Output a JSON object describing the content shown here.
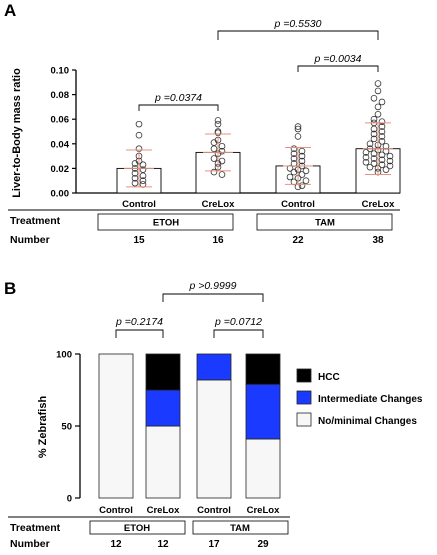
{
  "chart_data": [
    {
      "panel": "A",
      "type": "scatter",
      "ylabel": "Liver-to-Body mass ratio",
      "ylim": [
        0,
        0.1
      ],
      "yticks": [
        "0.00",
        "0.02",
        "0.04",
        "0.06",
        "0.08",
        "0.10"
      ],
      "categories": [
        "Control",
        "CreLox",
        "Control",
        "CreLox"
      ],
      "means": [
        0.02,
        0.033,
        0.022,
        0.036
      ],
      "sd": [
        0.015,
        0.015,
        0.015,
        0.021
      ],
      "series": [
        {
          "values": [
            0.056,
            0.047,
            0.036,
            0.03,
            0.026,
            0.024,
            0.023,
            0.02,
            0.019,
            0.016,
            0.014,
            0.012,
            0.01,
            0.008,
            0.007
          ]
        },
        {
          "values": [
            0.059,
            0.056,
            0.05,
            0.049,
            0.043,
            0.041,
            0.038,
            0.036,
            0.034,
            0.032,
            0.028,
            0.026,
            0.024,
            0.021,
            0.017,
            0.015
          ]
        },
        {
          "values": [
            0.054,
            0.052,
            0.046,
            0.036,
            0.034,
            0.032,
            0.03,
            0.028,
            0.026,
            0.024,
            0.022,
            0.02,
            0.019,
            0.018,
            0.017,
            0.015,
            0.013,
            0.012,
            0.01,
            0.009,
            0.006,
            0.005
          ]
        },
        {
          "values": [
            0.089,
            0.083,
            0.077,
            0.074,
            0.07,
            0.064,
            0.06,
            0.058,
            0.057,
            0.054,
            0.052,
            0.05,
            0.048,
            0.046,
            0.044,
            0.042,
            0.04,
            0.039,
            0.038,
            0.036,
            0.035,
            0.034,
            0.033,
            0.032,
            0.031,
            0.03,
            0.029,
            0.028,
            0.027,
            0.026,
            0.025,
            0.024,
            0.023,
            0.022,
            0.021,
            0.02,
            0.019,
            0.017
          ]
        }
      ],
      "comparisons": [
        "p =0.0374",
        "p =0.0034",
        "p =0.5530"
      ],
      "treatment_label": "Treatment",
      "groups": [
        "ETOH",
        "TAM"
      ],
      "number_label": "Number",
      "numbers": [
        "15",
        "16",
        "22",
        "38"
      ]
    },
    {
      "panel": "B",
      "type": "bar",
      "stacked": true,
      "ylabel": "% Zebrafish",
      "ylim": [
        0,
        100
      ],
      "yticks": [
        "0",
        "50",
        "100"
      ],
      "categories": [
        "Control",
        "CreLox",
        "Control",
        "CreLox"
      ],
      "series": [
        {
          "name": "No/minimal Changes",
          "color": "#f7f7f7",
          "values": [
            100,
            50,
            82,
            41
          ]
        },
        {
          "name": "Intermediate Changes",
          "color": "#1a3bff",
          "values": [
            0,
            25,
            18,
            38
          ]
        },
        {
          "name": "HCC",
          "color": "#000000",
          "values": [
            0,
            25,
            0,
            21
          ]
        }
      ],
      "comparisons": [
        "p =0.2174",
        "p =0.0712",
        "p >0.9999"
      ],
      "treatment_label": "Treatment",
      "groups": [
        "ETOH",
        "TAM"
      ],
      "number_label": "Number",
      "numbers": [
        "12",
        "12",
        "17",
        "29"
      ]
    }
  ]
}
